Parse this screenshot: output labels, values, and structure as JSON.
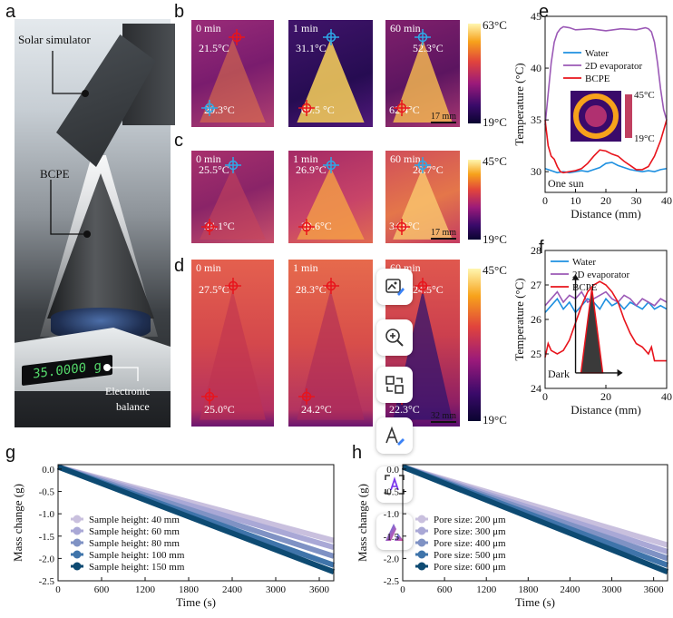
{
  "panel_labels": {
    "a": "a",
    "b": "b",
    "c": "c",
    "d": "d",
    "e": "e",
    "f": "f",
    "g": "g",
    "h": "h"
  },
  "panel_a": {
    "solar_simulator": "Solar simulator",
    "bcpe": "BCPE",
    "balance_line1": "Electronic",
    "balance_line2": "balance",
    "balance_display": "35.0000 g"
  },
  "panel_b": {
    "frames": [
      {
        "time": "0 min",
        "t1": "21.5°C",
        "t2": "20.3°C"
      },
      {
        "time": "1 min",
        "t1": "31.1°C",
        "t2": "60.5 °C"
      },
      {
        "time": "60 min",
        "t1": "52.3°C",
        "t2": "62.4°C"
      }
    ],
    "scale": "17 mm",
    "cmax": "63°C",
    "cmin": "19°C"
  },
  "panel_c": {
    "frames": [
      {
        "time": "0 min",
        "t1": "25.5°C",
        "t2": "24.1°C"
      },
      {
        "time": "1 min",
        "t1": "26.9°C",
        "t2": "28.6°C"
      },
      {
        "time": "60 min",
        "t1": "28.7°C",
        "t2": "34.6°C"
      }
    ],
    "scale": "17 mm",
    "cmax": "45°C",
    "cmin": "19°C"
  },
  "panel_d": {
    "frames": [
      {
        "time": "0 min",
        "t1": "27.5°C",
        "t2": "25.0°C"
      },
      {
        "time": "1 min",
        "t1": "28.3°C",
        "t2": "24.2°C"
      },
      {
        "time": "60 min",
        "t1": "24.5°C",
        "t2": "22.3°C"
      }
    ],
    "scale": "32 mm",
    "cmax": "45°C",
    "cmin": "19°C"
  },
  "toolbar": {
    "buttons": [
      {
        "name": "image-edit-icon"
      },
      {
        "name": "zoom-in-icon"
      },
      {
        "name": "swap-icon"
      },
      {
        "name": "text-edit-icon"
      },
      {
        "name": "text-scan-icon"
      },
      {
        "name": "ai-logo-icon"
      }
    ]
  },
  "colors": {
    "water": "#1e90e0",
    "evaporator": "#9b59b6",
    "bcpe": "#e8141c",
    "gh_series": [
      "#c9c0de",
      "#a9a8d6",
      "#7f92c4",
      "#3f74aa",
      "#0d4a72"
    ]
  },
  "chart_data": [
    {
      "id": "e",
      "type": "line",
      "xlabel": "Distance (mm)",
      "ylabel": "Temperature (°C)",
      "xlim": [
        0,
        40
      ],
      "ylim": [
        28,
        45
      ],
      "xticks": [
        0,
        10,
        20,
        30,
        40
      ],
      "yticks": [
        30,
        35,
        40,
        45
      ],
      "legend_position": "top-center",
      "annotation": "One sun",
      "inset": {
        "cmax": "45°C",
        "cmin": "19°C"
      },
      "series": [
        {
          "name": "Water",
          "x": [
            0,
            2,
            4,
            6,
            8,
            10,
            12,
            14,
            16,
            18,
            20,
            22,
            24,
            26,
            28,
            30,
            32,
            34,
            36,
            38,
            40
          ],
          "y": [
            30.3,
            30.1,
            29.9,
            30.0,
            29.9,
            30.0,
            30.1,
            30.0,
            30.2,
            30.4,
            30.8,
            30.9,
            30.6,
            30.4,
            30.2,
            30.1,
            30.0,
            30.1,
            30.0,
            30.2,
            30.3
          ]
        },
        {
          "name": "2D evaporator",
          "x": [
            0,
            1,
            2,
            3,
            4,
            5,
            6,
            8,
            10,
            15,
            20,
            25,
            30,
            33,
            34,
            35,
            36,
            37,
            38,
            39,
            40
          ],
          "y": [
            34.5,
            37.5,
            40.5,
            42.5,
            43.4,
            43.8,
            44.0,
            43.9,
            43.7,
            43.8,
            43.6,
            43.8,
            43.7,
            43.9,
            43.8,
            43.5,
            42.5,
            40.5,
            38.0,
            36.0,
            35.0
          ]
        },
        {
          "name": "BCPE",
          "x": [
            0,
            1,
            2,
            3,
            4,
            5,
            6,
            8,
            10,
            12,
            14,
            16,
            18,
            20,
            22,
            24,
            26,
            28,
            30,
            32,
            34,
            36,
            38,
            40
          ],
          "y": [
            35.0,
            32.5,
            31.5,
            31.2,
            30.5,
            30.0,
            29.9,
            30.0,
            30.1,
            30.3,
            30.8,
            31.5,
            32.1,
            32.0,
            31.7,
            31.5,
            31.0,
            30.6,
            30.2,
            30.2,
            30.5,
            31.5,
            33.0,
            35.0
          ]
        }
      ]
    },
    {
      "id": "f",
      "type": "line",
      "xlabel": "Distance (mm)",
      "ylabel": "Temperature (°C)",
      "xlim": [
        0,
        40
      ],
      "ylim": [
        24,
        28
      ],
      "xticks": [
        0,
        20,
        40
      ],
      "yticks": [
        24,
        25,
        26,
        27,
        28
      ],
      "legend_position": "top",
      "annotation": "Dark",
      "series": [
        {
          "name": "Water",
          "x": [
            0,
            2,
            4,
            6,
            8,
            10,
            12,
            14,
            16,
            18,
            20,
            22,
            24,
            26,
            28,
            30,
            32,
            34,
            36,
            38,
            40
          ],
          "y": [
            26.2,
            26.4,
            26.6,
            26.3,
            26.5,
            26.2,
            26.4,
            26.6,
            26.5,
            26.3,
            26.6,
            26.4,
            26.5,
            26.3,
            26.5,
            26.4,
            26.3,
            26.5,
            26.3,
            26.4,
            26.3
          ]
        },
        {
          "name": "2D evaporator",
          "x": [
            0,
            2,
            4,
            6,
            8,
            10,
            12,
            14,
            16,
            18,
            20,
            22,
            24,
            26,
            28,
            30,
            32,
            34,
            36,
            38,
            40
          ],
          "y": [
            26.4,
            26.6,
            26.8,
            26.5,
            26.7,
            26.6,
            26.8,
            26.5,
            26.6,
            26.7,
            26.8,
            26.6,
            26.5,
            26.7,
            26.6,
            26.4,
            26.6,
            26.5,
            26.4,
            26.6,
            26.5
          ]
        },
        {
          "name": "BCPE",
          "x": [
            0,
            1,
            2,
            4,
            6,
            8,
            10,
            12,
            14,
            16,
            18,
            20,
            22,
            24,
            26,
            28,
            30,
            32,
            34,
            35,
            36,
            38,
            40
          ],
          "y": [
            24.9,
            25.3,
            25.1,
            25.0,
            25.1,
            25.4,
            25.9,
            26.4,
            26.8,
            27.0,
            27.1,
            27.0,
            26.8,
            26.5,
            26.0,
            25.6,
            25.3,
            25.2,
            25.0,
            25.2,
            24.8,
            24.8,
            24.8
          ]
        }
      ]
    },
    {
      "id": "g",
      "type": "line",
      "xlabel": "Time (s)",
      "ylabel": "Mass change (g)",
      "xlim": [
        0,
        3800
      ],
      "ylim": [
        -2.5,
        0.1
      ],
      "xticks": [
        0,
        600,
        1200,
        1800,
        2400,
        3000,
        3600
      ],
      "yticks": [
        0.0,
        -0.5,
        -1.0,
        -1.5,
        -2.0,
        -2.5
      ],
      "legend_position": "lower-left",
      "series": [
        {
          "name": "Sample height: 40 mm",
          "x": [
            0,
            3800
          ],
          "y": [
            0.05,
            -1.6
          ]
        },
        {
          "name": "Sample height: 60 mm",
          "x": [
            0,
            3800
          ],
          "y": [
            0.05,
            -1.75
          ]
        },
        {
          "name": "Sample height: 80 mm",
          "x": [
            0,
            3800
          ],
          "y": [
            0.05,
            -1.95
          ]
        },
        {
          "name": "Sample height: 100 mm",
          "x": [
            0,
            3800
          ],
          "y": [
            0.05,
            -2.15
          ]
        },
        {
          "name": "Sample height: 150 mm",
          "x": [
            0,
            3800
          ],
          "y": [
            0.05,
            -2.3
          ]
        }
      ]
    },
    {
      "id": "h",
      "type": "line",
      "xlabel": "Time (s)",
      "ylabel": "Mass change (g)",
      "xlim": [
        0,
        3800
      ],
      "ylim": [
        -2.5,
        0.1
      ],
      "xticks": [
        0,
        600,
        1200,
        1800,
        2400,
        3000,
        3600
      ],
      "yticks": [
        0.0,
        -0.5,
        -1.0,
        -1.5,
        -2.0,
        -2.5
      ],
      "legend_position": "lower-left",
      "series": [
        {
          "name": "Pore size: 200 μm",
          "x": [
            0,
            3800
          ],
          "y": [
            0.05,
            -1.7
          ]
        },
        {
          "name": "Pore size: 300 μm",
          "x": [
            0,
            3800
          ],
          "y": [
            0.05,
            -1.85
          ]
        },
        {
          "name": "Pore size: 400 μm",
          "x": [
            0,
            3800
          ],
          "y": [
            0.05,
            -2.0
          ]
        },
        {
          "name": "Pore size: 500 μm",
          "x": [
            0,
            3800
          ],
          "y": [
            0.05,
            -2.15
          ]
        },
        {
          "name": "Pore size: 600 μm",
          "x": [
            0,
            3800
          ],
          "y": [
            0.05,
            -2.3
          ]
        }
      ]
    }
  ]
}
